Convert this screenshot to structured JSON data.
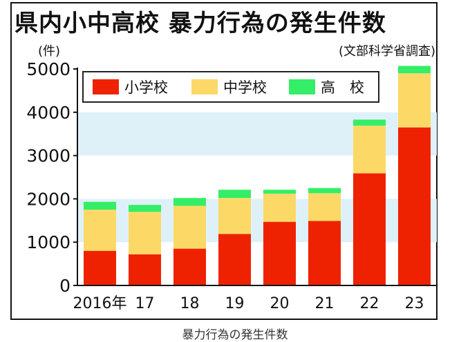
{
  "title": "県内小中高校 暴力行為の発生件数",
  "caption": "暴力行為の発生件数",
  "colors": {
    "elementary": "#ee2200",
    "middle": "#fcd966",
    "high": "#33ee66",
    "band": "#dff1f8"
  },
  "chart_data": {
    "type": "bar",
    "stacked": true,
    "title": "県内小中高校 暴力行為の発生件数",
    "ylabel": "(件)",
    "source": "(文部科学省調査)",
    "categories": [
      "2016年",
      "17",
      "18",
      "19",
      "20",
      "21",
      "22",
      "23"
    ],
    "ylim": [
      0,
      5000
    ],
    "yticks": [
      "0",
      "1000",
      "2000",
      "3000",
      "4000",
      "5000"
    ],
    "legend_position": "top-left",
    "series": [
      {
        "name": "小学校",
        "values": [
          800,
          720,
          850,
          1190,
          1470,
          1490,
          2590,
          3650
        ]
      },
      {
        "name": "中学校",
        "values": [
          950,
          980,
          990,
          830,
          650,
          640,
          1100,
          1250
        ]
      },
      {
        "name": "高　校",
        "values": [
          180,
          160,
          180,
          190,
          90,
          120,
          140,
          170
        ]
      }
    ]
  }
}
